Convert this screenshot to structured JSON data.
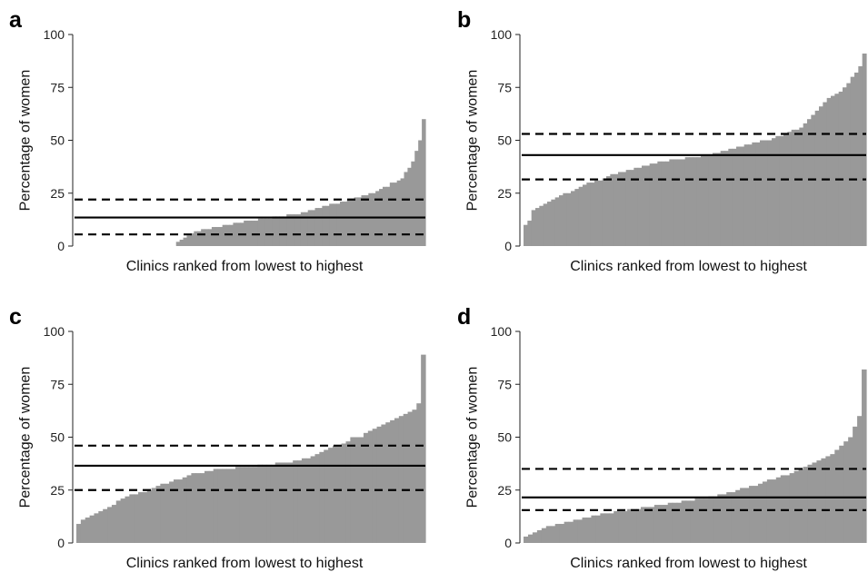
{
  "chart_data": [
    {
      "panel": "a",
      "type": "bar",
      "xlabel": "Clinics ranked from lowest to highest",
      "ylabel": "Percentage of women",
      "ylim": [
        0,
        100
      ],
      "yticks": [
        "0",
        "25",
        "50",
        "75",
        "100"
      ],
      "bar_color": "#999999",
      "zero_clinics": 28,
      "values": [
        2,
        3,
        4,
        5,
        6,
        7,
        7,
        8,
        8,
        8,
        9,
        9,
        9,
        10,
        10,
        10,
        11,
        11,
        11,
        12,
        12,
        12,
        12,
        13,
        13,
        13,
        13,
        14,
        14,
        14,
        14,
        15,
        15,
        15,
        15,
        16,
        16,
        17,
        17,
        18,
        18,
        19,
        19,
        20,
        20,
        20,
        21,
        21,
        22,
        22,
        23,
        23,
        24,
        24,
        25,
        25,
        26,
        27,
        28,
        28,
        30,
        30,
        31,
        32,
        35,
        37,
        40,
        45,
        50,
        60
      ],
      "reference_lines": [
        {
          "value": 13.5,
          "style": "solid"
        },
        {
          "value": 22,
          "style": "dashed"
        },
        {
          "value": 5.5,
          "style": "dashed"
        }
      ]
    },
    {
      "panel": "b",
      "type": "bar",
      "xlabel": "Clinics ranked from lowest to highest",
      "ylabel": "Percentage of women",
      "ylim": [
        0,
        100
      ],
      "yticks": [
        "0",
        "25",
        "50",
        "75",
        "100"
      ],
      "bar_color": "#999999",
      "zero_clinics": 0,
      "values": [
        10,
        12,
        17,
        18,
        19,
        20,
        21,
        22,
        23,
        24,
        25,
        25,
        26,
        27,
        28,
        29,
        30,
        30,
        31,
        31,
        32,
        33,
        34,
        34,
        35,
        35,
        36,
        36,
        37,
        37,
        38,
        38,
        39,
        39,
        40,
        40,
        40,
        41,
        41,
        41,
        41,
        42,
        42,
        42,
        42,
        43,
        43,
        43,
        44,
        44,
        45,
        45,
        46,
        46,
        47,
        47,
        48,
        48,
        49,
        49,
        50,
        50,
        50,
        51,
        52,
        52,
        53,
        54,
        55,
        55,
        56,
        58,
        60,
        62,
        64,
        66,
        68,
        70,
        71,
        72,
        73,
        75,
        77,
        80,
        82,
        85,
        91
      ],
      "reference_lines": [
        {
          "value": 43,
          "style": "solid"
        },
        {
          "value": 53,
          "style": "dashed"
        },
        {
          "value": 31.5,
          "style": "dashed"
        }
      ]
    },
    {
      "panel": "c",
      "type": "bar",
      "xlabel": "Clinics ranked from lowest to highest",
      "ylabel": "Percentage of women",
      "ylim": [
        0,
        100
      ],
      "yticks": [
        "0",
        "25",
        "50",
        "75",
        "100"
      ],
      "bar_color": "#999999",
      "zero_clinics": 0,
      "values": [
        9,
        11,
        12,
        13,
        14,
        15,
        16,
        17,
        18,
        20,
        21,
        22,
        23,
        23,
        24,
        24,
        25,
        26,
        27,
        28,
        28,
        29,
        30,
        30,
        31,
        32,
        33,
        33,
        33,
        34,
        34,
        35,
        35,
        35,
        35,
        35,
        36,
        36,
        36,
        36,
        36,
        37,
        37,
        37,
        37,
        38,
        38,
        38,
        38,
        39,
        39,
        40,
        40,
        41,
        42,
        43,
        44,
        45,
        46,
        46,
        47,
        48,
        50,
        50,
        50,
        52,
        53,
        54,
        55,
        56,
        57,
        58,
        59,
        60,
        61,
        62,
        63,
        66,
        89
      ],
      "reference_lines": [
        {
          "value": 36.5,
          "style": "solid"
        },
        {
          "value": 46,
          "style": "dashed"
        },
        {
          "value": 25,
          "style": "dashed"
        }
      ]
    },
    {
      "panel": "d",
      "type": "bar",
      "xlabel": "Clinics ranked from lowest to highest",
      "ylabel": "Percentage of women",
      "ylim": [
        0,
        100
      ],
      "yticks": [
        "0",
        "25",
        "50",
        "75",
        "100"
      ],
      "bar_color": "#999999",
      "zero_clinics": 0,
      "values": [
        3,
        4,
        5,
        6,
        7,
        8,
        8,
        9,
        9,
        10,
        10,
        11,
        11,
        12,
        12,
        13,
        13,
        14,
        14,
        14,
        15,
        15,
        15,
        16,
        16,
        16,
        17,
        17,
        17,
        18,
        18,
        18,
        19,
        19,
        19,
        20,
        20,
        20,
        21,
        21,
        21,
        22,
        22,
        23,
        23,
        24,
        24,
        25,
        26,
        26,
        27,
        27,
        28,
        29,
        30,
        30,
        31,
        32,
        32,
        33,
        34,
        35,
        36,
        37,
        38,
        39,
        40,
        41,
        42,
        44,
        46,
        48,
        50,
        55,
        60,
        82
      ],
      "reference_lines": [
        {
          "value": 21.5,
          "style": "solid"
        },
        {
          "value": 35,
          "style": "dashed"
        },
        {
          "value": 15.5,
          "style": "dashed"
        }
      ]
    }
  ]
}
